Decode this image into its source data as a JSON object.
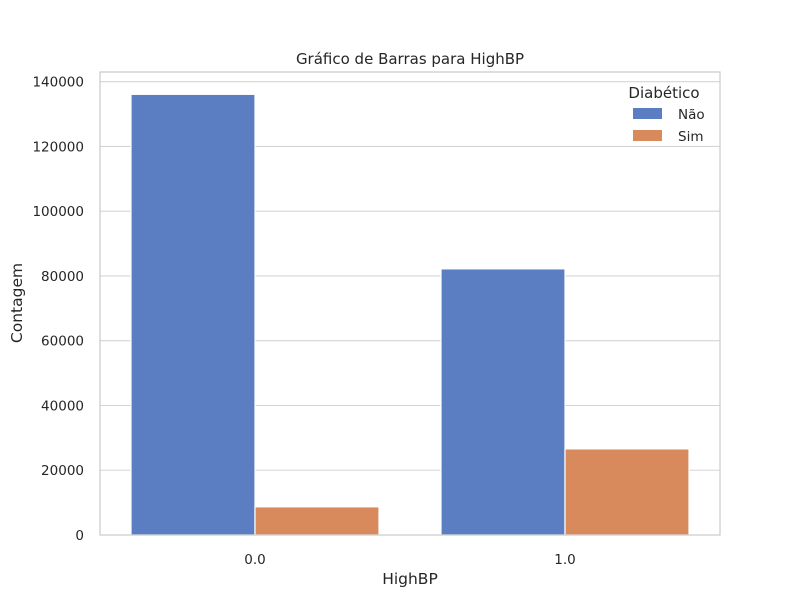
{
  "chart_data": {
    "type": "bar",
    "title": "Gráfico de Barras para HighBP",
    "xlabel": "HighBP",
    "ylabel": "Contagem",
    "categories": [
      "0.0",
      "1.0"
    ],
    "series": [
      {
        "name": "Não",
        "values": [
          136100,
          82200
        ],
        "color": "#5a7ec1"
      },
      {
        "name": "Sim",
        "values": [
          8700,
          26600
        ],
        "color": "#d88a5c"
      }
    ],
    "ylim": [
      0,
      143000
    ],
    "yticks": [
      0,
      20000,
      40000,
      60000,
      80000,
      100000,
      120000,
      140000
    ],
    "grid": true,
    "legend": {
      "title": "Diabético",
      "placement": "top-right"
    }
  }
}
